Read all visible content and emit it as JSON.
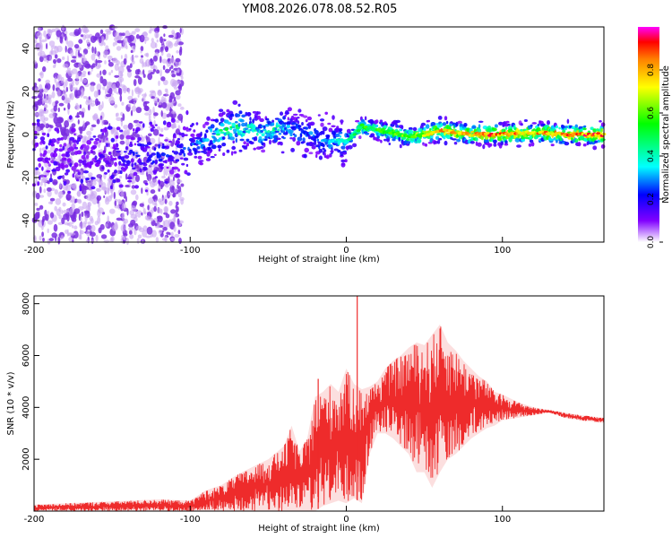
{
  "title": "YM08.2026.078.08.52.R05",
  "colors": {
    "snr_line": "#ee2b2b",
    "spectro_purple": "#6a1fd0",
    "spectro_light": "#d7b8f5"
  },
  "chart_data": [
    {
      "type": "heatmap",
      "name": "spectrogram",
      "xlabel": "Height of straight line (km)",
      "ylabel": "Frequency (Hz)",
      "xlim": [
        -200,
        165
      ],
      "ylim": [
        -50,
        50
      ],
      "xticks": [
        -200,
        -100,
        0,
        100
      ],
      "yticks": [
        -40,
        -20,
        0,
        20,
        40
      ],
      "colorbar": {
        "label": "Normalized spectral amplitude",
        "range": [
          0,
          1
        ],
        "ticks": [
          0.0,
          0.2,
          0.4,
          0.6,
          0.8
        ],
        "tick_labels": [
          "0.0",
          "0.2",
          "0.4",
          "0.6",
          "0.8"
        ]
      },
      "ridge": {
        "x": [
          -200,
          -150,
          -130,
          -110,
          -95,
          -80,
          -65,
          -55,
          -45,
          -35,
          -25,
          -15,
          0,
          5,
          10,
          20,
          30,
          40,
          50,
          60,
          70,
          80,
          90,
          100,
          120,
          140,
          165
        ],
        "freq": [
          -10,
          -10,
          -10,
          -8,
          -5,
          2,
          4,
          0,
          3,
          2,
          0,
          -3,
          -3,
          0,
          4,
          2,
          1,
          -1,
          0,
          2,
          1,
          0,
          0,
          0,
          1,
          0,
          0
        ],
        "amplitude": [
          0.12,
          0.15,
          0.25,
          0.22,
          0.3,
          0.45,
          0.5,
          0.35,
          0.45,
          0.3,
          0.3,
          0.3,
          0.4,
          0.45,
          0.55,
          0.55,
          0.6,
          0.6,
          0.7,
          0.8,
          0.8,
          0.8,
          0.9,
          0.85,
          0.8,
          0.85,
          0.9
        ]
      }
    },
    {
      "type": "line",
      "name": "snr",
      "xlabel": "Height of straight line (km)",
      "ylabel": "SNR (10 * v/v)",
      "xlim": [
        -200,
        165
      ],
      "ylim": [
        0,
        8300
      ],
      "xticks": [
        -200,
        -100,
        0,
        100
      ],
      "yticks": [
        2000,
        4000,
        6000,
        8000
      ],
      "envelope": {
        "x": [
          -200,
          -180,
          -160,
          -140,
          -120,
          -100,
          -90,
          -80,
          -70,
          -60,
          -50,
          -40,
          -35,
          -30,
          -25,
          -20,
          -15,
          -10,
          -5,
          0,
          5,
          10,
          15,
          20,
          25,
          30,
          35,
          40,
          45,
          50,
          55,
          60,
          65,
          70,
          75,
          80,
          85,
          90,
          95,
          100,
          110,
          120,
          130,
          140,
          150,
          165
        ],
        "min": [
          0,
          0,
          0,
          0,
          0,
          0,
          0,
          0,
          0,
          0,
          0,
          0,
          0,
          0,
          0,
          0,
          200,
          300,
          400,
          300,
          500,
          300,
          2200,
          3000,
          3000,
          2800,
          2500,
          2200,
          1500,
          1500,
          900,
          1500,
          2000,
          2200,
          2500,
          2800,
          3000,
          3200,
          3300,
          3500,
          3600,
          3700,
          3800,
          3600,
          3500,
          3400
        ],
        "max": [
          250,
          300,
          350,
          400,
          450,
          400,
          800,
          1000,
          1400,
          1700,
          2000,
          2500,
          3300,
          2300,
          2800,
          4400,
          4600,
          4900,
          4600,
          5500,
          4900,
          4700,
          4800,
          5000,
          5500,
          5800,
          6000,
          6300,
          6500,
          6400,
          6800,
          7200,
          6500,
          6200,
          5800,
          5500,
          5200,
          5000,
          4600,
          4500,
          4200,
          4000,
          3900,
          3800,
          3700,
          3600
        ]
      },
      "spikes": [
        {
          "x": 7,
          "y": 8300
        },
        {
          "x": -18,
          "y": 5100
        }
      ]
    }
  ]
}
